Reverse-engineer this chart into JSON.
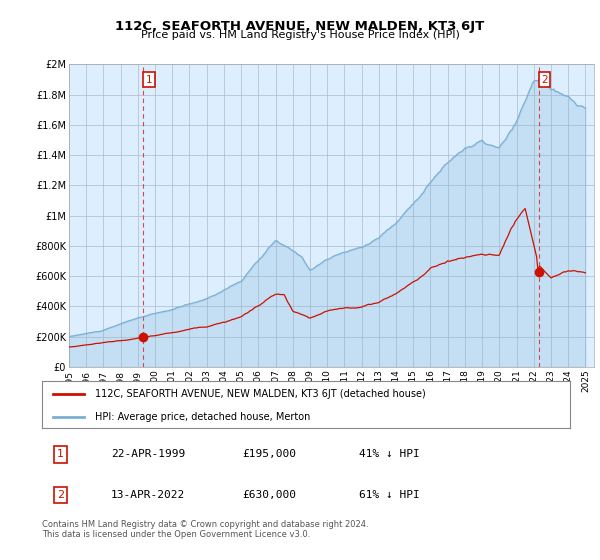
{
  "title": "112C, SEAFORTH AVENUE, NEW MALDEN, KT3 6JT",
  "subtitle": "Price paid vs. HM Land Registry's House Price Index (HPI)",
  "hpi_color": "#7ab0d4",
  "hpi_fill_color": "#d0e4f0",
  "price_color": "#cc1100",
  "dashed_line_color": "#dd4444",
  "background_color": "#ffffff",
  "chart_bg_color": "#ddeeff",
  "grid_color": "#aabbcc",
  "ylim": [
    0,
    2000000
  ],
  "yticks": [
    0,
    200000,
    400000,
    600000,
    800000,
    1000000,
    1200000,
    1400000,
    1600000,
    1800000,
    2000000
  ],
  "ytick_labels": [
    "£0",
    "£200K",
    "£400K",
    "£600K",
    "£800K",
    "£1M",
    "£1.2M",
    "£1.4M",
    "£1.6M",
    "£1.8M",
    "£2M"
  ],
  "xlim_start": 1995.0,
  "xlim_end": 2025.5,
  "xticks": [
    1995,
    1996,
    1997,
    1998,
    1999,
    2000,
    2001,
    2002,
    2003,
    2004,
    2005,
    2006,
    2007,
    2008,
    2009,
    2010,
    2011,
    2012,
    2013,
    2014,
    2015,
    2016,
    2017,
    2018,
    2019,
    2020,
    2021,
    2022,
    2023,
    2024,
    2025
  ],
  "sale1_x": 1999.31,
  "sale1_y": 195000,
  "sale2_x": 2022.28,
  "sale2_y": 630000,
  "legend_line1": "112C, SEAFORTH AVENUE, NEW MALDEN, KT3 6JT (detached house)",
  "legend_line2": "HPI: Average price, detached house, Merton",
  "table_row1": [
    "1",
    "22-APR-1999",
    "£195,000",
    "41% ↓ HPI"
  ],
  "table_row2": [
    "2",
    "13-APR-2022",
    "£630,000",
    "61% ↓ HPI"
  ],
  "footer": "Contains HM Land Registry data © Crown copyright and database right 2024.\nThis data is licensed under the Open Government Licence v3.0.",
  "font_family": "DejaVu Sans",
  "mono_font": "DejaVu Sans Mono"
}
